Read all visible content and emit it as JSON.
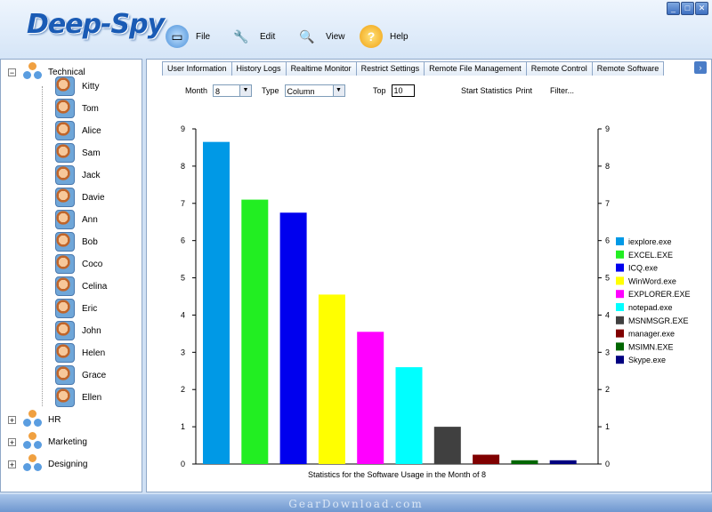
{
  "app": {
    "logo": "Deep-Spy"
  },
  "window_buttons": [
    "_",
    "□",
    "✕"
  ],
  "menu": [
    {
      "label": "File",
      "icon": "file-icon",
      "color": "#4a8fd8"
    },
    {
      "label": "Edit",
      "icon": "wrench-icon",
      "color": "#c89b4a"
    },
    {
      "label": "View",
      "icon": "magnifier-icon",
      "color": "#5a8fd0"
    },
    {
      "label": "Help",
      "icon": "help-icon",
      "color": "#f0b020"
    }
  ],
  "tree": {
    "groups": [
      {
        "label": "Technical",
        "expanded": true,
        "users": [
          "Kitty",
          "Tom",
          "Alice",
          "Sam",
          "Jack",
          "Davie",
          "Ann",
          "Bob",
          "Coco",
          "Celina",
          "Eric",
          "John",
          "Helen",
          "Grace",
          "Ellen"
        ]
      },
      {
        "label": "HR",
        "expanded": false
      },
      {
        "label": "Marketing",
        "expanded": false
      },
      {
        "label": "Designing",
        "expanded": false
      }
    ],
    "expand_symbol": "+",
    "collapse_symbol": "−"
  },
  "tabs": [
    "User Information",
    "History Logs",
    "Realtime Monitor",
    "Restrict Settings",
    "Remote File Management",
    "Remote Control",
    "Remote Software"
  ],
  "tab_scroll": "›",
  "controls": {
    "month_label": "Month",
    "month_value": "8",
    "type_label": "Type",
    "type_value": "Column",
    "top_label": "Top",
    "top_value": "10",
    "start_statistics": "Start Statistics",
    "print": "Print",
    "filter": "Filter..."
  },
  "chart_data": {
    "type": "bar",
    "title": "Statistics for the Software Usage in the Month of  8",
    "categories": [
      "iexplore.exe",
      "EXCEL.EXE",
      "ICQ.exe",
      "WinWord.exe",
      "EXPLORER.EXE",
      "notepad.exe",
      "MSNMSGR.EXE",
      "manager.exe",
      "MSIMN.EXE",
      "Skype.exe"
    ],
    "values": [
      8.65,
      7.1,
      6.75,
      4.55,
      3.55,
      2.6,
      1.0,
      0.25,
      0.1,
      0.1
    ],
    "colors": [
      "#0099e6",
      "#22ee22",
      "#0000ee",
      "#ffff00",
      "#ff00ff",
      "#00ffff",
      "#404040",
      "#800000",
      "#006600",
      "#000080"
    ],
    "ylim": [
      0,
      9
    ],
    "yticks": [
      "0",
      "1",
      "2",
      "3",
      "4",
      "5",
      "6",
      "7",
      "8",
      "9"
    ],
    "legend_position": "right"
  },
  "watermark": "GearDownload.com"
}
